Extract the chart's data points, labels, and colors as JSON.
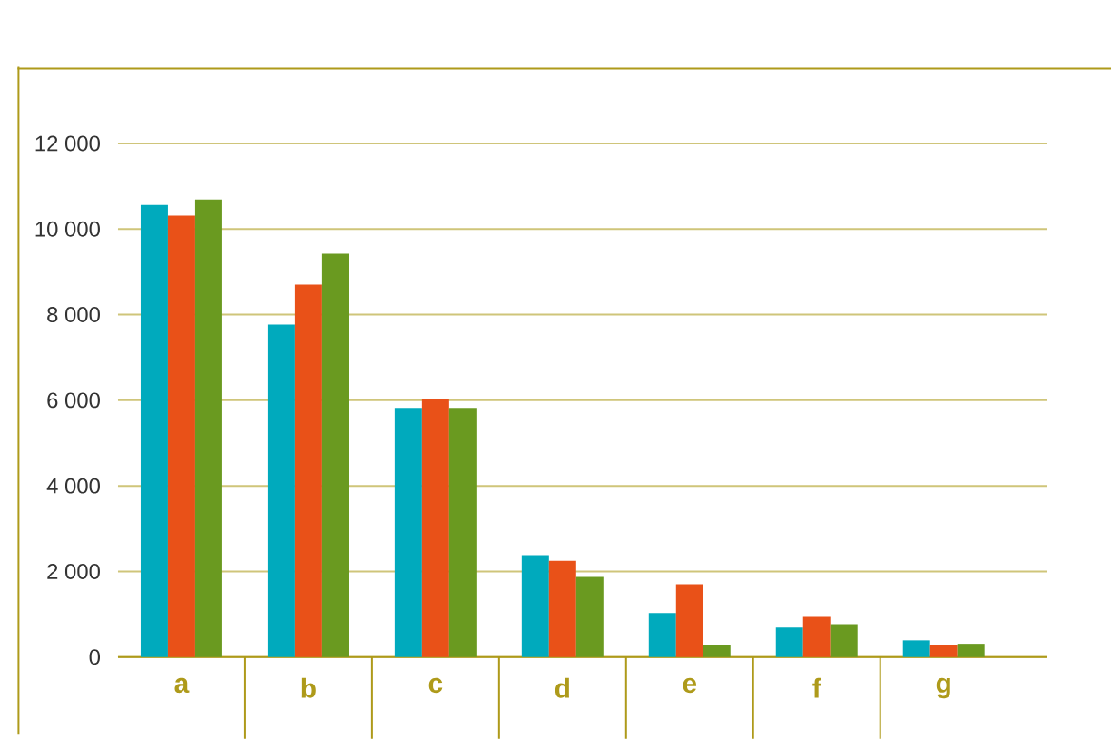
{
  "chart_data": {
    "type": "bar",
    "categories": [
      "a",
      "b",
      "c",
      "d",
      "e",
      "f",
      "g"
    ],
    "series": [
      {
        "color": "#00aabd",
        "values": [
          10560,
          7770,
          5820,
          2380,
          1030,
          690,
          390
        ]
      },
      {
        "color": "#e95118",
        "values": [
          10310,
          8700,
          6030,
          2250,
          1700,
          940,
          270
        ]
      },
      {
        "color": "#6a9a20",
        "values": [
          10690,
          9420,
          5820,
          1870,
          270,
          770,
          310
        ]
      }
    ],
    "ylim": [
      0,
      12000
    ],
    "yticks": [
      0,
      {
        "value": 2000,
        "label": "2 000"
      },
      {
        "value": 4000,
        "label": "4 000"
      },
      {
        "value": 6000,
        "label": "6 000"
      },
      {
        "value": 8000,
        "label": "8 000"
      },
      {
        "value": 10000,
        "label": "10 000"
      },
      {
        "value": 12000,
        "label": "12 000"
      }
    ],
    "grid": "y"
  }
}
